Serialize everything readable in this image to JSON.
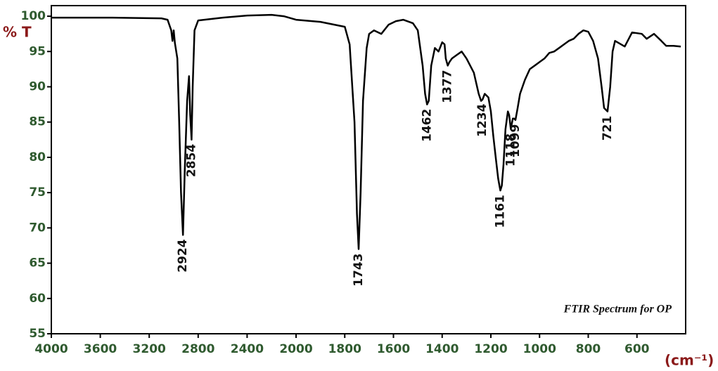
{
  "chart_data": {
    "type": "line",
    "y_label": "% T",
    "x_label": "(cm⁻¹)",
    "annotation_title": "FTIR Spectrum for OP",
    "xlim": [
      4000,
      400
    ],
    "x_scale_break": 2000,
    "xticks": [
      4000,
      3600,
      3200,
      2800,
      2400,
      2000,
      1800,
      1600,
      1400,
      1200,
      1000,
      800,
      600
    ],
    "ylim": [
      55,
      101.5
    ],
    "yticks": [
      55,
      60,
      65,
      70,
      75,
      80,
      85,
      90,
      95,
      100
    ],
    "color": "#000000",
    "x": [
      4000,
      3500,
      3100,
      3050,
      3020,
      3010,
      3000,
      2990,
      2970,
      2955,
      2940,
      2924,
      2910,
      2890,
      2875,
      2865,
      2854,
      2845,
      2830,
      2800,
      2600,
      2400,
      2200,
      2100,
      2000,
      1900,
      1800,
      1780,
      1760,
      1750,
      1743,
      1735,
      1725,
      1710,
      1700,
      1680,
      1650,
      1620,
      1590,
      1560,
      1520,
      1500,
      1480,
      1470,
      1462,
      1455,
      1445,
      1430,
      1415,
      1400,
      1390,
      1385,
      1377,
      1370,
      1360,
      1340,
      1320,
      1300,
      1270,
      1250,
      1240,
      1234,
      1225,
      1210,
      1200,
      1190,
      1180,
      1170,
      1161,
      1155,
      1148,
      1140,
      1130,
      1125,
      1118,
      1110,
      1105,
      1099,
      1090,
      1080,
      1060,
      1040,
      1000,
      980,
      960,
      940,
      920,
      900,
      880,
      860,
      840,
      820,
      800,
      780,
      760,
      745,
      735,
      721,
      710,
      700,
      690,
      650,
      620,
      580,
      560,
      530,
      500,
      480,
      450,
      420
    ],
    "values": [
      99.8,
      99.8,
      99.7,
      99.5,
      98,
      96.5,
      98,
      96.2,
      94,
      85,
      75,
      69,
      78,
      88,
      91.5,
      86,
      82.5,
      90,
      98,
      99.4,
      99.8,
      100.1,
      100.2,
      100,
      99.5,
      99.2,
      98.5,
      96,
      85,
      72,
      67,
      75,
      88,
      95.5,
      97.5,
      98,
      97.5,
      98.8,
      99.3,
      99.5,
      99,
      98,
      93,
      89,
      87.5,
      88,
      93,
      95.5,
      95,
      96.3,
      96,
      94,
      93,
      93.5,
      94,
      94.5,
      95,
      94,
      92,
      89,
      88,
      88.2,
      89,
      88.5,
      86.5,
      83,
      80,
      77,
      75.3,
      76,
      79,
      84,
      86.5,
      86,
      84,
      85.5,
      85.5,
      85.3,
      87,
      89,
      91,
      92.5,
      93.5,
      94,
      94.8,
      95,
      95.5,
      96,
      96.5,
      96.8,
      97.5,
      98,
      97.8,
      96.5,
      94,
      90,
      87,
      86.5,
      90,
      95,
      96.5,
      95.7,
      97.7,
      97.5,
      96.8,
      97.5,
      96.5,
      95.8,
      95.8,
      95.7
    ],
    "annotations": [
      {
        "text": "2924",
        "x": 2924,
        "y": 69
      },
      {
        "text": "2854",
        "x": 2854,
        "y": 82.5
      },
      {
        "text": "1743",
        "x": 1743,
        "y": 67
      },
      {
        "text": "1462",
        "x": 1462,
        "y": 87.5
      },
      {
        "text": "1377",
        "x": 1377,
        "y": 93
      },
      {
        "text": "1234",
        "x": 1234,
        "y": 88.2
      },
      {
        "text": "1161",
        "x": 1161,
        "y": 75.3
      },
      {
        "text": "1118",
        "x": 1118,
        "y": 84
      },
      {
        "text": "1099",
        "x": 1099,
        "y": 85.3
      },
      {
        "text": "721",
        "x": 721,
        "y": 86.5
      }
    ]
  }
}
